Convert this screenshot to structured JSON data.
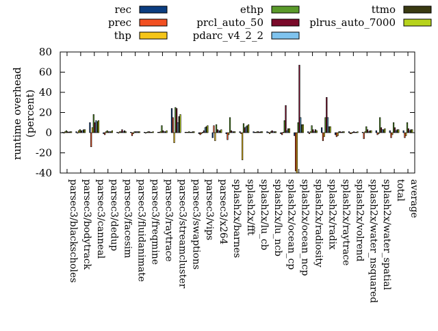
{
  "chart_data": {
    "type": "bar",
    "ylabel_line1": "runtime overhead",
    "ylabel_line2": "(percent)",
    "ylim": [
      -40,
      80
    ],
    "yticks": [
      -40,
      -20,
      0,
      20,
      40,
      60,
      80
    ],
    "ytick_labels": [
      "-40",
      "-20",
      "0",
      "20",
      "40",
      "60",
      "80"
    ],
    "legend_position": "top",
    "grid": false,
    "categories": [
      "parsec3/blackscholes",
      "parsec3/bodytrack",
      "parsec3/canneal",
      "parsec3/dedup",
      "parsec3/facesim",
      "parsec3/fluidanimate",
      "parsec3/freqmine",
      "parsec3/raytrace",
      "parsec3/streamcluster",
      "parsec3/swaptions",
      "parsec3/vips",
      "parsec3/x264",
      "splash2x/barnes",
      "splash2x/fft",
      "splash2x/lu_cb",
      "splash2x/lu_ncb",
      "splash2x/ocean_cp",
      "splash2x/ocean_ncp",
      "splash2x/radiosity",
      "splash2x/radix",
      "splash2x/raytrace",
      "splash2x/volrend",
      "splash2x/water_nsquared",
      "splash2x/water_spatial",
      "total",
      "average"
    ],
    "series": [
      {
        "name": "rec",
        "color": "#0b3d80",
        "values": [
          0.5,
          1,
          10,
          -1,
          0.5,
          0.5,
          0.5,
          0.5,
          24,
          0.5,
          -1,
          -5,
          -1,
          1,
          1,
          1,
          -1,
          -3,
          1,
          5,
          -2,
          1,
          0.5,
          2,
          2,
          2
        ]
      },
      {
        "name": "prec",
        "color": "#f25022",
        "values": [
          0,
          -0.5,
          -14,
          -2,
          -0.5,
          -3,
          -0.5,
          0.5,
          15,
          0.5,
          -2,
          7,
          -7,
          -1,
          0.5,
          0.5,
          -2,
          -38,
          -1,
          -8,
          -4,
          -1,
          -6,
          -2,
          -5,
          -5
        ]
      },
      {
        "name": "thp",
        "color": "#f5c518",
        "values": [
          1,
          2,
          5,
          1,
          1,
          -1,
          0.5,
          1,
          -10,
          0.5,
          -1,
          -8,
          -2,
          -27,
          0.5,
          -1,
          0.5,
          -40,
          1,
          -4,
          -3,
          -1,
          1,
          -1,
          -2,
          -3
        ]
      },
      {
        "name": "ethp",
        "color": "#5a9a2a",
        "values": [
          2,
          3,
          18,
          2,
          1,
          1,
          1,
          7,
          25,
          1,
          0.5,
          8,
          15,
          9,
          1,
          1,
          12,
          10,
          7,
          15,
          1,
          0.5,
          6,
          15,
          10,
          10
        ]
      },
      {
        "name": "prcl_auto_50",
        "color": "#7a0a2a",
        "values": [
          1,
          2,
          10,
          1,
          3,
          1,
          1,
          2,
          24,
          0.5,
          2,
          3,
          2,
          5,
          1,
          2,
          27,
          67,
          3,
          35,
          1,
          1,
          3,
          5,
          5,
          4
        ]
      },
      {
        "name": "pdarc_v4_2_2",
        "color": "#7fc3ee",
        "values": [
          0.5,
          2,
          12,
          1,
          1,
          1,
          0.5,
          1,
          10,
          0.5,
          5,
          2,
          1,
          6,
          0.5,
          1,
          2,
          15,
          1,
          15,
          0.5,
          0.5,
          1,
          3,
          2,
          2
        ]
      },
      {
        "name": "ttmo",
        "color": "#3a3a12",
        "values": [
          1,
          3,
          11,
          1,
          2,
          1,
          0.5,
          1,
          16,
          1,
          6,
          2,
          1,
          7,
          1,
          1,
          4,
          8,
          3,
          6,
          1,
          0.5,
          2,
          3,
          3,
          3
        ]
      },
      {
        "name": "plrus_auto_7000",
        "color": "#b7d31c",
        "values": [
          1,
          3,
          12,
          2,
          1,
          1,
          1,
          2,
          18,
          1,
          7,
          3,
          1,
          8,
          1,
          1,
          4,
          8,
          2,
          6,
          1,
          1,
          2,
          4,
          3,
          3
        ]
      }
    ]
  }
}
